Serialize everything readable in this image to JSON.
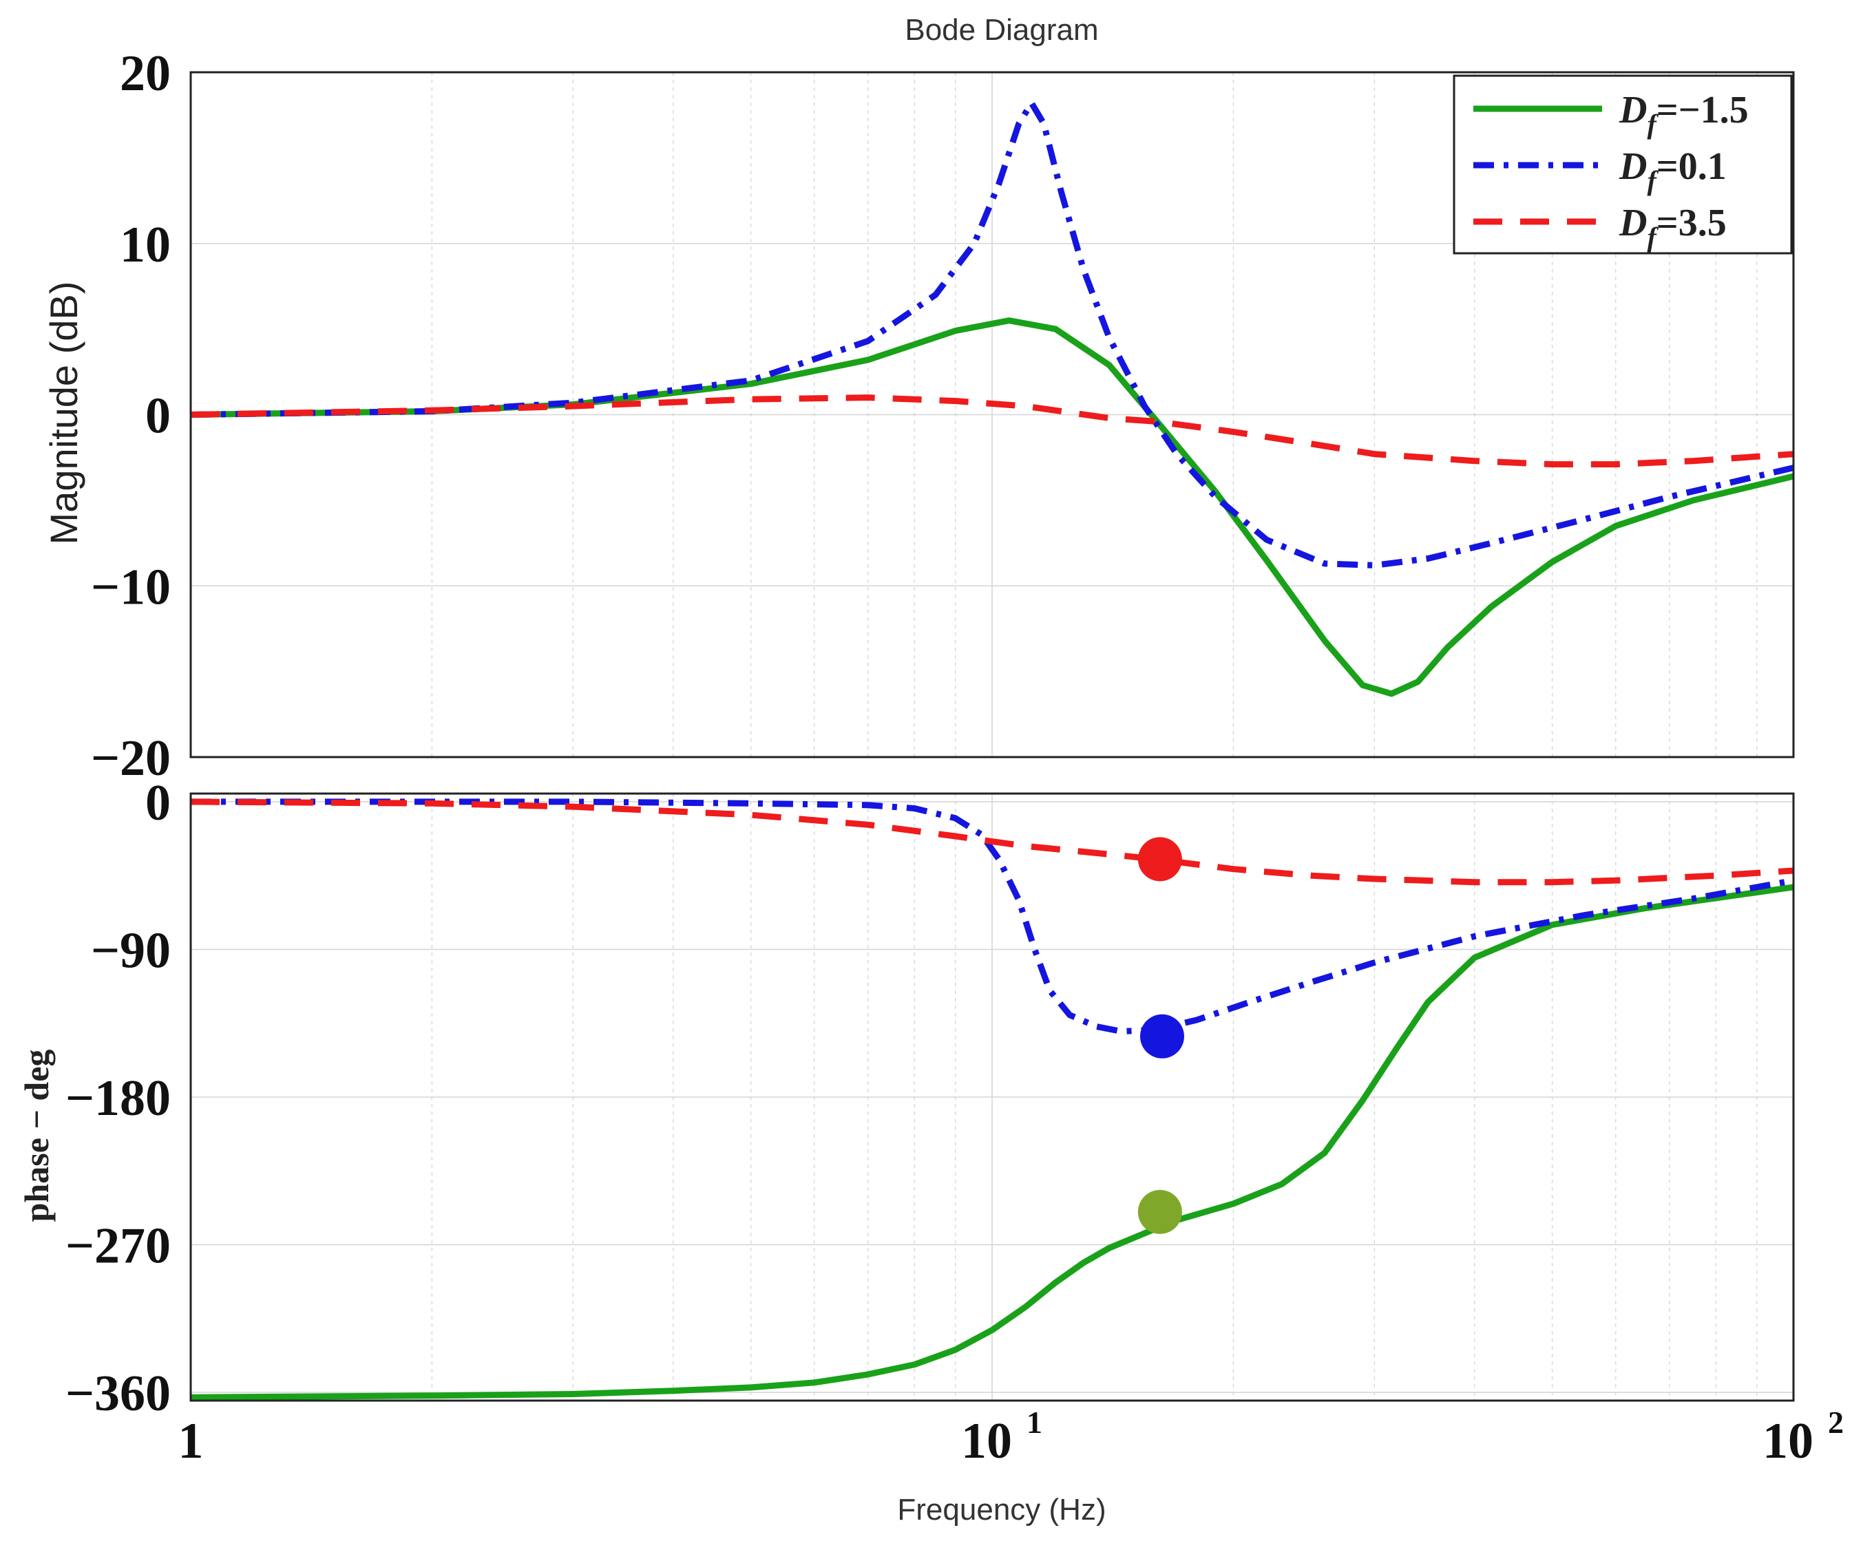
{
  "chart_data": [
    {
      "type": "line",
      "panel": "magnitude",
      "title": "Bode Diagram",
      "ylabel": "Magnitude (dB)",
      "xscale": "log",
      "xlim": [
        1,
        100
      ],
      "ylim": [
        -20,
        20
      ],
      "yticks": [
        {
          "value": 20,
          "label": "20"
        },
        {
          "value": 10,
          "label": "10"
        },
        {
          "value": 0,
          "label": "0"
        },
        {
          "value": -10,
          "label": "−10"
        },
        {
          "value": -20,
          "label": "−20"
        }
      ],
      "grid": true,
      "legend": {
        "position": "top-right",
        "entries": [
          {
            "prefix": "D",
            "sub": "f",
            "suffix": "=−1.5",
            "color": "#1aa11a",
            "style": "solid"
          },
          {
            "prefix": "D",
            "sub": "f",
            "suffix": "=0.1",
            "color": "#1515e0",
            "style": "dashdot"
          },
          {
            "prefix": "D",
            "sub": "f",
            "suffix": "=3.5",
            "color": "#ee1c1c",
            "style": "dashed"
          }
        ]
      },
      "series": [
        {
          "name": "Df=-1.5",
          "color": "#1aa11a",
          "style": "solid",
          "x": [
            1,
            2,
            3,
            5,
            7,
            9,
            10.5,
            12,
            14,
            16,
            19,
            22,
            26,
            29,
            31.5,
            34,
            37,
            42,
            50,
            60,
            75,
            100
          ],
          "y": [
            0,
            0.2,
            0.6,
            1.8,
            3.2,
            4.9,
            5.5,
            5.0,
            2.9,
            -0.3,
            -4.5,
            -8.5,
            -13.2,
            -15.8,
            -16.3,
            -15.6,
            -13.6,
            -11.2,
            -8.6,
            -6.5,
            -5.0,
            -3.6
          ]
        },
        {
          "name": "Df=0.1",
          "color": "#1515e0",
          "style": "dashdot",
          "x": [
            1,
            2,
            3,
            5,
            7,
            8.5,
            9.5,
            10.2,
            10.8,
            11.2,
            11.6,
            12.2,
            13,
            14,
            15.5,
            17,
            19,
            22,
            26,
            30,
            35,
            42,
            55,
            70,
            100
          ],
          "y": [
            0,
            0.2,
            0.7,
            2.0,
            4.3,
            7.0,
            10.0,
            13.5,
            17.0,
            18.2,
            17.0,
            13.0,
            8.5,
            4.5,
            0.5,
            -2.3,
            -4.8,
            -7.3,
            -8.7,
            -8.8,
            -8.4,
            -7.5,
            -6.1,
            -4.8,
            -3.1
          ]
        },
        {
          "name": "Df=3.5",
          "color": "#ee1c1c",
          "style": "dashed",
          "x": [
            1,
            2,
            3,
            5,
            7,
            9,
            11,
            14,
            16,
            20,
            25,
            30,
            40,
            50,
            60,
            75,
            100
          ],
          "y": [
            0,
            0.25,
            0.5,
            0.9,
            1.0,
            0.8,
            0.5,
            -0.2,
            -0.4,
            -1.0,
            -1.7,
            -2.3,
            -2.7,
            -2.9,
            -2.9,
            -2.7,
            -2.3
          ]
        }
      ]
    },
    {
      "type": "line",
      "panel": "phase",
      "ylabel": "phase − deg",
      "xlabel": "Frequency  (Hz)",
      "xscale": "log",
      "xlim": [
        1,
        100
      ],
      "ylim": [
        -365,
        5
      ],
      "xticks": [
        {
          "value": 1,
          "label": "1"
        },
        {
          "value": 10,
          "base": "10",
          "exp": "1"
        },
        {
          "value": 100,
          "base": "10",
          "exp": "2"
        }
      ],
      "yticks": [
        {
          "value": 0,
          "label": "0"
        },
        {
          "value": -90,
          "label": "−90"
        },
        {
          "value": -180,
          "label": "−180"
        },
        {
          "value": -270,
          "label": "−270"
        },
        {
          "value": -360,
          "label": "−360"
        }
      ],
      "grid": true,
      "series": [
        {
          "name": "Df=-1.5",
          "color": "#1aa11a",
          "style": "solid",
          "x": [
            1,
            2,
            3,
            4,
            5,
            6,
            7,
            8,
            9,
            10,
            11,
            12,
            13,
            14,
            15.5,
            17,
            20,
            23,
            26,
            29,
            32,
            35,
            40,
            50,
            65,
            100
          ],
          "y": [
            -363,
            -362,
            -361,
            -359,
            -357,
            -354,
            -349,
            -343,
            -334,
            -322,
            -308,
            -293,
            -281,
            -272,
            -263,
            -255,
            -245,
            -233,
            -214,
            -182,
            -150,
            -122,
            -95,
            -75,
            -65,
            -52
          ]
        },
        {
          "name": "Df=0.1",
          "color": "#1515e0",
          "style": "dashdot",
          "x": [
            1,
            3,
            5,
            7,
            8,
            9,
            9.7,
            10.2,
            10.8,
            11.3,
            11.8,
            12.5,
            13.5,
            14.5,
            16,
            18,
            21,
            25,
            30,
            40,
            55,
            75,
            100
          ],
          "y": [
            0,
            0,
            -1,
            -2,
            -4,
            -10,
            -20,
            -35,
            -60,
            -90,
            -115,
            -130,
            -137,
            -140,
            -139,
            -133,
            -122,
            -110,
            -98,
            -82,
            -69,
            -59,
            -48
          ]
        },
        {
          "name": "Df=3.5",
          "color": "#ee1c1c",
          "style": "dashed",
          "x": [
            1,
            2,
            3,
            5,
            7,
            9,
            11,
            14,
            16,
            20,
            25,
            30,
            40,
            50,
            60,
            80,
            100
          ],
          "y": [
            0,
            -1,
            -3,
            -8,
            -14,
            -21,
            -27,
            -32,
            -35,
            -41,
            -45,
            -47,
            -49,
            -49,
            -48,
            -45,
            -42
          ]
        }
      ],
      "markers": [
        {
          "x": 16.2,
          "y": -35,
          "color": "#ee1c1c"
        },
        {
          "x": 16.3,
          "y": -143,
          "color": "#1515e0"
        },
        {
          "x": 16.2,
          "y": -250,
          "color": "#7fa82a"
        }
      ]
    }
  ]
}
